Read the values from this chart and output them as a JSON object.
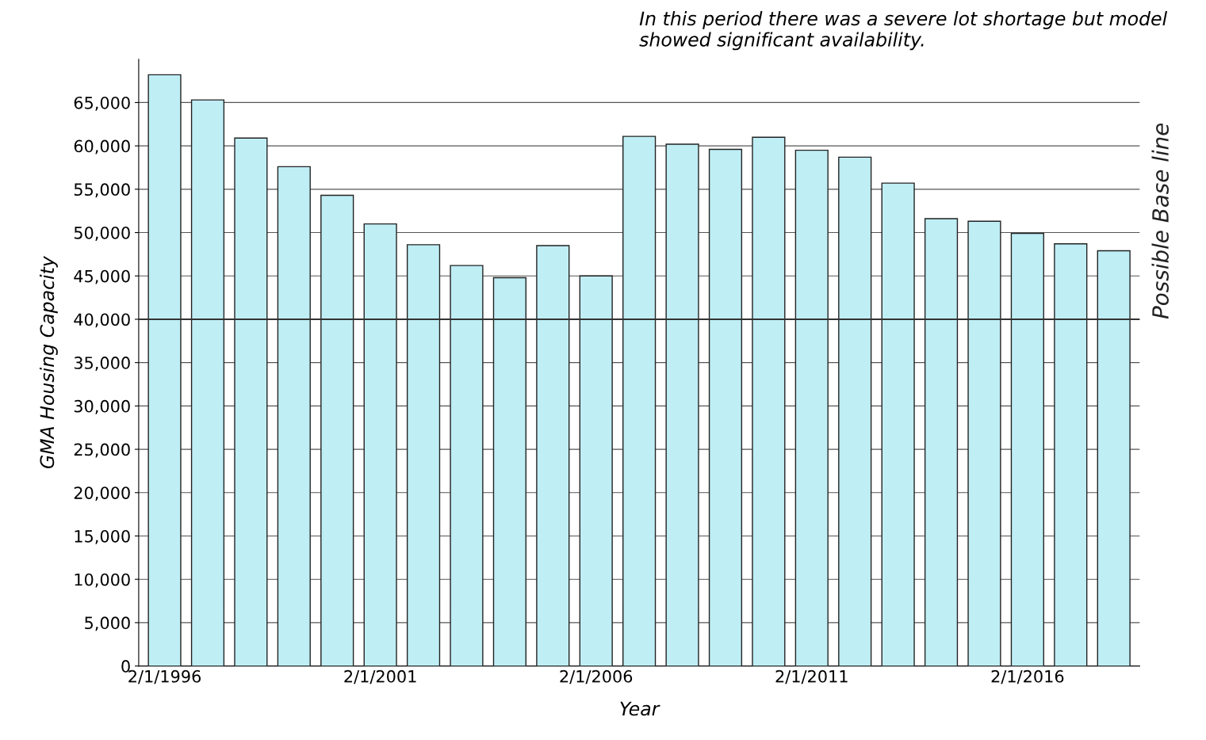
{
  "chart_data": {
    "type": "bar",
    "xlabel": "Year",
    "ylabel": "GMA Housing Capacity",
    "categories": [
      "2/1/1996",
      null,
      null,
      null,
      null,
      "2/1/2001",
      null,
      null,
      null,
      null,
      "2/1/2006",
      null,
      null,
      null,
      null,
      "2/1/2011",
      null,
      null,
      null,
      null,
      "2/1/2016",
      null,
      null
    ],
    "values": [
      68200,
      65300,
      60900,
      57600,
      54300,
      51000,
      48600,
      46200,
      44800,
      48500,
      45000,
      61100,
      60200,
      59600,
      61000,
      59500,
      58700,
      55700,
      51600,
      51300,
      49900,
      48700,
      47900
    ],
    "color": "#bfeef5",
    "ylim": [
      0,
      70000
    ],
    "yticks": [
      {
        "value": 0,
        "label": "0"
      },
      {
        "value": 5000,
        "label": "5,000"
      },
      {
        "value": 10000,
        "label": "10,000"
      },
      {
        "value": 15000,
        "label": "15,000"
      },
      {
        "value": 20000,
        "label": "20,000"
      },
      {
        "value": 25000,
        "label": "25,000"
      },
      {
        "value": 30000,
        "label": "30,000"
      },
      {
        "value": 35000,
        "label": "35,000"
      },
      {
        "value": 40000,
        "label": "40,000"
      },
      {
        "value": 45000,
        "label": "45,000"
      },
      {
        "value": 50000,
        "label": "50,000"
      },
      {
        "value": 55000,
        "label": "55,000"
      },
      {
        "value": 60000,
        "label": "60,000"
      },
      {
        "value": 65000,
        "label": "65,000"
      }
    ],
    "grid": "y",
    "ref_lines": [
      {
        "axis": "y",
        "value": 40000,
        "label": "Possible Base line",
        "color": "#333333"
      }
    ],
    "annotations": [
      "In this period there was a severe lot shortage but model showed significant availability."
    ]
  }
}
